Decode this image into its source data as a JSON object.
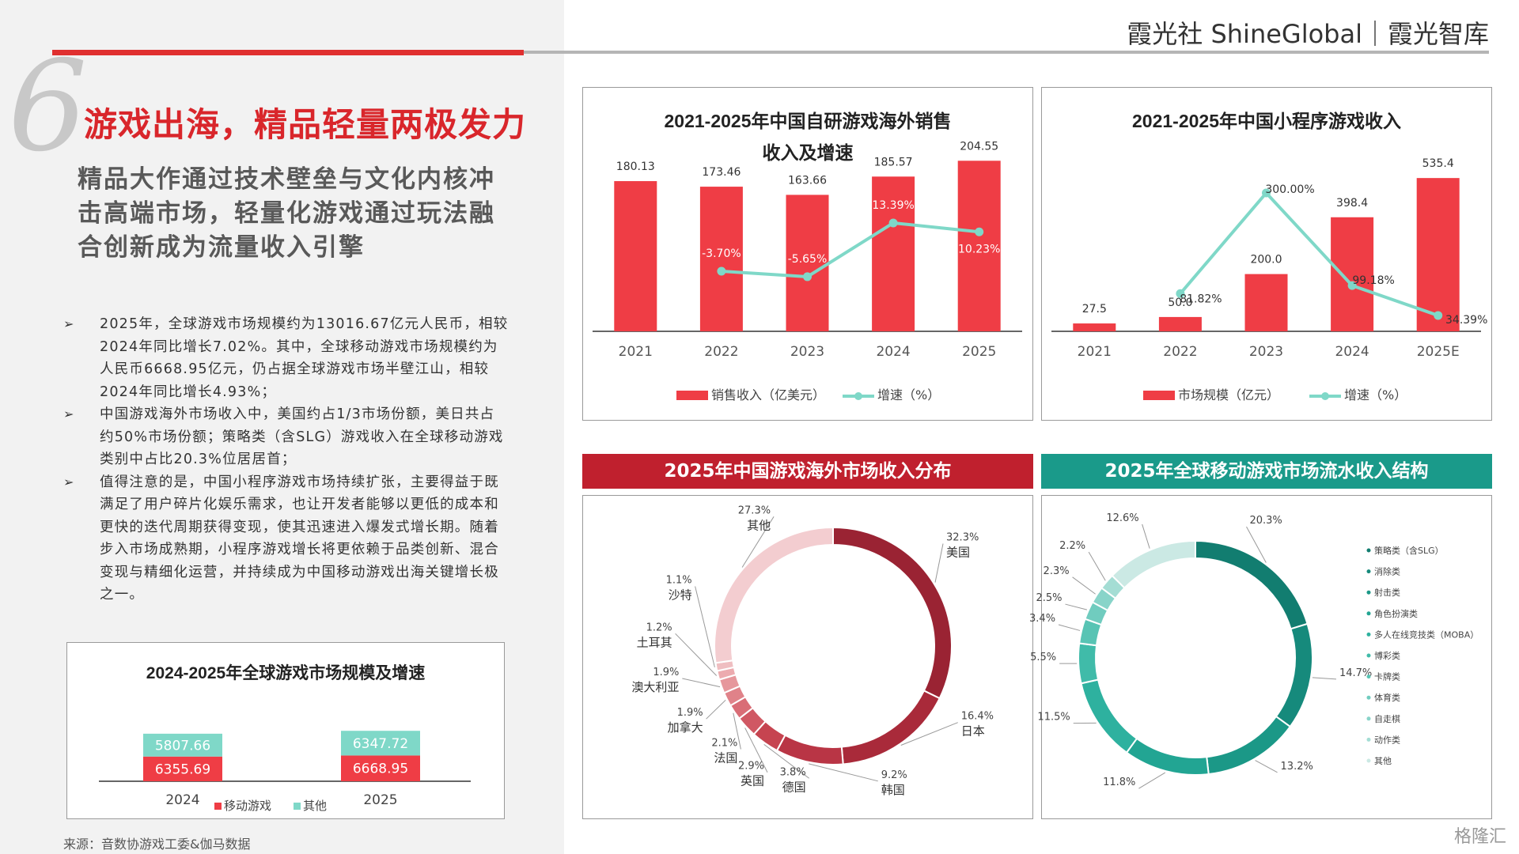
{
  "header": {
    "brand": "霞光社 ShineGlobal｜霞光智库"
  },
  "section": {
    "number": "6",
    "title": "游戏出海，精品轻量两极发力",
    "subtitle": "精品大作通过技术壁垒与文化内核冲击高端市场，轻量化游戏通过玩法融合创新成为流量收入引擎"
  },
  "bullets": [
    "2025年，全球游戏市场规模约为13016.67亿元人民币，相较2024年同比增长7.02%。其中，全球移动游戏市场规模约为人民币6668.95亿元，仍占据全球游戏市场半壁江山，相较2024年同比增长4.93%；",
    "中国游戏海外市场收入中，美国约占1/3市场份额，美日共占约50%市场份额；策略类（含SLG）游戏收入在全球移动游戏类别中占比20.3%位居居首；",
    "值得注意的是，中国小程序游戏市场持续扩张，主要得益于既满足了用户碎片化娱乐需求，也让开发者能够以更低的成本和更快的迭代周期获得变现，使其迅速进入爆发式增长期。随着步入市场成熟期，小程序游戏增长将更依赖于品类创新、混合变现与精细化运营，并持续成为中国移动游戏出海关键增长极之一。"
  ],
  "bullet_marker": "➢",
  "source": "来源：音数协游戏工委&伽马数据",
  "watermark": "格隆汇",
  "colors": {
    "red": "#ef3d45",
    "teal": "#7fd8c8",
    "dark_red": "#c0202e",
    "dark_teal": "#1a9a8a"
  },
  "banners": {
    "overseas_dist": "2025年中国游戏海外市场收入分布",
    "mobile_structure": "2025年全球移动游戏市场流水收入结构"
  },
  "chart_data": [
    {
      "id": "global_market",
      "type": "bar",
      "stacked": true,
      "title": "2024-2025年全球游戏市场规模及增速",
      "categories": [
        "2024",
        "2025"
      ],
      "series": [
        {
          "name": "移动游戏",
          "values": [
            6355.69,
            6668.95
          ],
          "labels": [
            "6355.69",
            "6668.95"
          ],
          "color": "#ef3d45"
        },
        {
          "name": "其他",
          "values": [
            5807.66,
            6347.72
          ],
          "labels": [
            "5807.66",
            "6347.72"
          ],
          "color": "#7fd8c8"
        }
      ],
      "legend": "bottom"
    },
    {
      "id": "overseas_sales",
      "type": "bar",
      "title_line1": "2021-2025年中国自研游戏海外销售",
      "title_line2": "收入及增速",
      "categories": [
        "2021",
        "2022",
        "2023",
        "2024",
        "2025"
      ],
      "series": [
        {
          "name": "销售收入（亿美元）",
          "type": "bar",
          "values": [
            180.13,
            173.46,
            163.66,
            185.57,
            204.55
          ],
          "labels": [
            "180.13",
            "173.46",
            "163.66",
            "185.57",
            "204.55"
          ],
          "color": "#ef3d45"
        },
        {
          "name": "增速（%）",
          "type": "line",
          "values": [
            null,
            -3.7,
            -5.65,
            13.39,
            10.23
          ],
          "labels": [
            "",
            "-3.70%",
            "-5.65%",
            "13.39%",
            "10.23%"
          ],
          "color": "#7fd8c8"
        }
      ],
      "ylim": [
        0,
        220
      ],
      "ylim_line": [
        -25,
        40
      ],
      "legend": "bottom"
    },
    {
      "id": "mini_program",
      "type": "bar",
      "title": "2021-2025年中国小程序游戏收入",
      "categories": [
        "2021",
        "2022",
        "2023",
        "2024",
        "2025E"
      ],
      "series": [
        {
          "name": "市场规模（亿元）",
          "type": "bar",
          "values": [
            27.5,
            50.0,
            200.0,
            398.4,
            535.4
          ],
          "labels": [
            "27.5",
            "50.0",
            "200.0",
            "398.4",
            "535.4"
          ],
          "color": "#ef3d45"
        },
        {
          "name": "增速（%）",
          "type": "line",
          "values": [
            null,
            81.82,
            300.0,
            99.18,
            34.39
          ],
          "labels": [
            "",
            "81.82%",
            "300.00%",
            "99.18%",
            "34.39%"
          ],
          "color": "#7fd8c8"
        }
      ],
      "ylim": [
        0,
        580
      ],
      "ylim_line": [
        0,
        360
      ],
      "legend": "bottom"
    },
    {
      "id": "overseas_distribution",
      "type": "pie",
      "donut": true,
      "slices": [
        {
          "label": "美国",
          "pct": "32.3%",
          "value": 32.3,
          "color": "#9a2333"
        },
        {
          "label": "日本",
          "pct": "16.4%",
          "value": 16.4,
          "color": "#a92a3a"
        },
        {
          "label": "韩国",
          "pct": "9.2%",
          "value": 9.2,
          "color": "#b93545"
        },
        {
          "label": "德国",
          "pct": "3.8%",
          "value": 3.8,
          "color": "#c64450"
        },
        {
          "label": "英国",
          "pct": "2.9%",
          "value": 2.9,
          "color": "#d05863"
        },
        {
          "label": "法国",
          "pct": "2.1%",
          "value": 2.1,
          "color": "#d96d76"
        },
        {
          "label": "加拿大",
          "pct": "1.9%",
          "value": 1.9,
          "color": "#e08289"
        },
        {
          "label": "澳大利亚",
          "pct": "1.9%",
          "value": 1.9,
          "color": "#e6979c"
        },
        {
          "label": "土耳其",
          "pct": "1.2%",
          "value": 1.2,
          "color": "#ecabaf"
        },
        {
          "label": "沙特",
          "pct": "1.1%",
          "value": 1.1,
          "color": "#efbec1"
        },
        {
          "label": "其他",
          "pct": "27.3%",
          "value": 27.3,
          "color": "#f3cdd0"
        }
      ]
    },
    {
      "id": "mobile_structure",
      "type": "pie",
      "donut": true,
      "slices": [
        {
          "label": "策略类（含SLG）",
          "pct": "20.3%",
          "value": 20.3,
          "color": "#127d70"
        },
        {
          "label": "消除类",
          "pct": "14.7%",
          "value": 14.7,
          "color": "#168a7c"
        },
        {
          "label": "射击类",
          "pct": "13.2%",
          "value": 13.2,
          "color": "#1b9887"
        },
        {
          "label": "角色扮演类",
          "pct": "11.8%",
          "value": 11.8,
          "color": "#22a593"
        },
        {
          "label": "多人在线竞技类（MOBA）",
          "pct": "11.5%",
          "value": 11.5,
          "color": "#2eb19f"
        },
        {
          "label": "博彩类",
          "pct": "5.5%",
          "value": 5.5,
          "color": "#40bba9"
        },
        {
          "label": "卡牌类",
          "pct": "3.4%",
          "value": 3.4,
          "color": "#58c4b4"
        },
        {
          "label": "体育类",
          "pct": "2.5%",
          "value": 2.5,
          "color": "#70ccbf"
        },
        {
          "label": "自走棋",
          "pct": "2.3%",
          "value": 2.3,
          "color": "#88d4c9"
        },
        {
          "label": "动作类",
          "pct": "2.2%",
          "value": 2.2,
          "color": "#a4ddd4"
        },
        {
          "label": "其他",
          "pct": "12.6%",
          "value": 12.6,
          "color": "#cbe9e4"
        }
      ],
      "legend": "right"
    }
  ]
}
